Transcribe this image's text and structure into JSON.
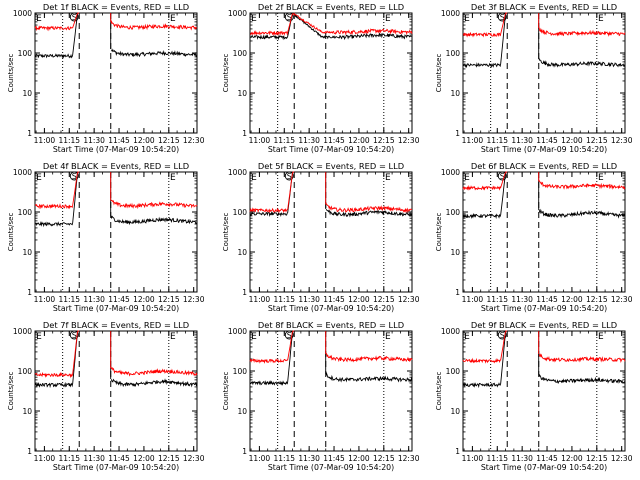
{
  "figure": {
    "title_template": "Det {d}f BLACK = Events, RED = LLD",
    "xlabel": "Start Time (07-Mar-09 10:54:20)",
    "ylabel": "Counts/sec",
    "colors": {
      "events": "#000000",
      "lld": "#ff0000",
      "axes": "#000000"
    }
  },
  "chart_data": [
    {
      "type": "line",
      "detector": 1,
      "title": "Det 1f BLACK = Events, RED = LLD",
      "xlabel": "Start Time (07-Mar-09 10:54:20)",
      "ylabel": "Counts/sec",
      "x_ticks": [
        "11:00",
        "11:15",
        "11:30",
        "11:45",
        "12:00",
        "12:15",
        "12:30"
      ],
      "y_ticks": [
        "1",
        "10",
        "100",
        "1000"
      ],
      "ylim": [
        1,
        1000
      ],
      "yscale": "log",
      "markers": {
        "S": {
          "label": "S",
          "time": "11:18"
        },
        "E": {
          "label": "E",
          "time": "12:15"
        }
      },
      "vlines": {
        "dotted": [
          "11:11",
          "12:15"
        ],
        "dashed": [
          "11:21",
          "11:40"
        ]
      },
      "gap": [
        "11:21",
        "11:40"
      ],
      "series": [
        {
          "name": "Events",
          "color": "#000000",
          "before_base": 85,
          "after_base": 90,
          "after_bump": 100
        },
        {
          "name": "LLD",
          "color": "#ff0000",
          "before_base": 420,
          "after_base": 430,
          "after_bump": 470
        }
      ]
    },
    {
      "type": "line",
      "detector": 2,
      "title": "Det 2f BLACK = Events, RED = LLD",
      "xlabel": "Start Time (07-Mar-09 10:54:20)",
      "ylabel": "Counts/sec",
      "x_ticks": [
        "11:00",
        "11:15",
        "11:30",
        "11:45",
        "12:00",
        "12:15",
        "12:30"
      ],
      "y_ticks": [
        "1",
        "10",
        "100",
        "1000"
      ],
      "ylim": [
        1,
        1000
      ],
      "yscale": "log",
      "markers": {
        "S": {
          "label": "S",
          "time": "11:18"
        },
        "E": {
          "label": "E",
          "time": "12:15"
        }
      },
      "vlines": {
        "dotted": [
          "11:11",
          "12:15"
        ],
        "dashed": [
          "11:21",
          "11:40"
        ]
      },
      "gap": [],
      "series": [
        {
          "name": "Events",
          "color": "#000000",
          "before_base": 250,
          "after_base": 250,
          "after_bump": 280
        },
        {
          "name": "LLD",
          "color": "#ff0000",
          "before_base": 320,
          "after_base": 330,
          "after_bump": 360,
          "peak": 1000
        }
      ]
    },
    {
      "type": "line",
      "detector": 3,
      "title": "Det 3f BLACK = Events, RED = LLD",
      "xlabel": "Start Time (07-Mar-09 10:54:20)",
      "ylabel": "Counts/sec",
      "x_ticks": [
        "11:00",
        "11:15",
        "11:30",
        "11:45",
        "12:00",
        "12:15",
        "12:30"
      ],
      "y_ticks": [
        "1",
        "10",
        "100",
        "1000"
      ],
      "ylim": [
        1,
        1000
      ],
      "yscale": "log",
      "markers": {
        "S": {
          "label": "S",
          "time": "11:18"
        },
        "E": {
          "label": "E",
          "time": "12:15"
        }
      },
      "vlines": {
        "dotted": [
          "11:11",
          "12:15"
        ],
        "dashed": [
          "11:21",
          "11:40"
        ]
      },
      "gap": [
        "11:21",
        "11:40"
      ],
      "series": [
        {
          "name": "Events",
          "color": "#000000",
          "before_base": 50,
          "after_base": 50,
          "after_bump": 55
        },
        {
          "name": "LLD",
          "color": "#ff0000",
          "before_base": 290,
          "after_base": 300,
          "after_bump": 320
        }
      ]
    },
    {
      "type": "line",
      "detector": 4,
      "title": "Det 4f BLACK = Events, RED = LLD",
      "xlabel": "Start Time (07-Mar-09 10:54:20)",
      "ylabel": "Counts/sec",
      "x_ticks": [
        "11:00",
        "11:15",
        "11:30",
        "11:45",
        "12:00",
        "12:15",
        "12:30"
      ],
      "y_ticks": [
        "1",
        "10",
        "100",
        "1000"
      ],
      "ylim": [
        1,
        1000
      ],
      "yscale": "log",
      "markers": {
        "S": {
          "label": "S",
          "time": "11:18"
        },
        "E": {
          "label": "E",
          "time": "12:15"
        }
      },
      "vlines": {
        "dotted": [
          "11:11",
          "12:15"
        ],
        "dashed": [
          "11:21",
          "11:40"
        ]
      },
      "gap": [
        "11:21",
        "11:40"
      ],
      "series": [
        {
          "name": "Events",
          "color": "#000000",
          "before_base": 50,
          "after_base": 55,
          "after_bump": 65
        },
        {
          "name": "LLD",
          "color": "#ff0000",
          "before_base": 140,
          "after_base": 140,
          "after_bump": 160
        }
      ]
    },
    {
      "type": "line",
      "detector": 5,
      "title": "Det 5f BLACK = Events, RED = LLD",
      "xlabel": "Start Time (07-Mar-09 10:54:20)",
      "ylabel": "Counts/sec",
      "x_ticks": [
        "11:00",
        "11:15",
        "11:30",
        "11:45",
        "12:00",
        "12:15",
        "12:30"
      ],
      "y_ticks": [
        "1",
        "10",
        "100",
        "1000"
      ],
      "ylim": [
        1,
        1000
      ],
      "yscale": "log",
      "markers": {
        "S": {
          "label": "S",
          "time": "11:18"
        },
        "E": {
          "label": "E",
          "time": "12:15"
        }
      },
      "vlines": {
        "dotted": [
          "11:11",
          "12:15"
        ],
        "dashed": [
          "11:21",
          "11:40"
        ]
      },
      "gap": [
        "11:21",
        "11:40"
      ],
      "series": [
        {
          "name": "Events",
          "color": "#000000",
          "before_base": 90,
          "after_base": 85,
          "after_bump": 100
        },
        {
          "name": "LLD",
          "color": "#ff0000",
          "before_base": 110,
          "after_base": 110,
          "after_bump": 125
        }
      ]
    },
    {
      "type": "line",
      "detector": 6,
      "title": "Det 6f BLACK = Events, RED = LLD",
      "xlabel": "Start Time (07-Mar-09 10:54:20)",
      "ylabel": "Counts/sec",
      "x_ticks": [
        "11:00",
        "11:15",
        "11:30",
        "11:45",
        "12:00",
        "12:15",
        "12:30"
      ],
      "y_ticks": [
        "1",
        "10",
        "100",
        "1000"
      ],
      "ylim": [
        1,
        1000
      ],
      "yscale": "log",
      "markers": {
        "S": {
          "label": "S",
          "time": "11:18"
        },
        "E": {
          "label": "E",
          "time": "12:15"
        }
      },
      "vlines": {
        "dotted": [
          "11:11",
          "12:15"
        ],
        "dashed": [
          "11:21",
          "11:40"
        ]
      },
      "gap": [
        "11:21",
        "11:40"
      ],
      "series": [
        {
          "name": "Events",
          "color": "#000000",
          "before_base": 80,
          "after_base": 80,
          "after_bump": 95
        },
        {
          "name": "LLD",
          "color": "#ff0000",
          "before_base": 400,
          "after_base": 420,
          "after_bump": 460
        }
      ]
    },
    {
      "type": "line",
      "detector": 7,
      "title": "Det 7f BLACK = Events, RED = LLD",
      "xlabel": "Start Time (07-Mar-09 10:54:20)",
      "ylabel": "Counts/sec",
      "x_ticks": [
        "11:00",
        "11:15",
        "11:30",
        "11:45",
        "12:00",
        "12:15",
        "12:30"
      ],
      "y_ticks": [
        "1",
        "10",
        "100",
        "1000"
      ],
      "ylim": [
        1,
        1000
      ],
      "yscale": "log",
      "markers": {
        "S": {
          "label": "S",
          "time": "11:18"
        },
        "E": {
          "label": "E",
          "time": "12:15"
        }
      },
      "vlines": {
        "dotted": [
          "11:11",
          "12:15"
        ],
        "dashed": [
          "11:21",
          "11:40"
        ]
      },
      "gap": [
        "11:21",
        "11:40"
      ],
      "series": [
        {
          "name": "Events",
          "color": "#000000",
          "before_base": 45,
          "after_base": 45,
          "after_bump": 55
        },
        {
          "name": "LLD",
          "color": "#ff0000",
          "before_base": 80,
          "after_base": 85,
          "after_bump": 100
        }
      ]
    },
    {
      "type": "line",
      "detector": 8,
      "title": "Det 8f BLACK = Events, RED = LLD",
      "xlabel": "Start Time (07-Mar-09 10:54:20)",
      "ylabel": "Counts/sec",
      "x_ticks": [
        "11:00",
        "11:15",
        "11:30",
        "11:45",
        "12:00",
        "12:15",
        "12:30"
      ],
      "y_ticks": [
        "1",
        "10",
        "100",
        "1000"
      ],
      "ylim": [
        1,
        1000
      ],
      "yscale": "log",
      "markers": {
        "S": {
          "label": "S",
          "time": "11:18"
        },
        "E": {
          "label": "E",
          "time": "12:15"
        }
      },
      "vlines": {
        "dotted": [
          "11:11",
          "12:15"
        ],
        "dashed": [
          "11:21",
          "11:40"
        ]
      },
      "gap": [
        "11:21",
        "11:40"
      ],
      "series": [
        {
          "name": "Events",
          "color": "#000000",
          "before_base": 50,
          "after_base": 60,
          "after_bump": 65
        },
        {
          "name": "LLD",
          "color": "#ff0000",
          "before_base": 180,
          "after_base": 190,
          "after_bump": 210
        }
      ]
    },
    {
      "type": "line",
      "detector": 9,
      "title": "Det 9f BLACK = Events, RED = LLD",
      "xlabel": "Start Time (07-Mar-09 10:54:20)",
      "ylabel": "Counts/sec",
      "x_ticks": [
        "11:00",
        "11:15",
        "11:30",
        "11:45",
        "12:00",
        "12:15",
        "12:30"
      ],
      "y_ticks": [
        "1",
        "10",
        "100",
        "1000"
      ],
      "ylim": [
        1,
        1000
      ],
      "yscale": "log",
      "markers": {
        "S": {
          "label": "S",
          "time": "11:18"
        },
        "E": {
          "label": "E",
          "time": "12:15"
        }
      },
      "vlines": {
        "dotted": [
          "11:11",
          "12:15"
        ],
        "dashed": [
          "11:21",
          "11:40"
        ]
      },
      "gap": [
        "11:21",
        "11:40"
      ],
      "series": [
        {
          "name": "Events",
          "color": "#000000",
          "before_base": 45,
          "after_base": 55,
          "after_bump": 60
        },
        {
          "name": "LLD",
          "color": "#ff0000",
          "before_base": 180,
          "after_base": 190,
          "after_bump": 200
        }
      ]
    }
  ]
}
